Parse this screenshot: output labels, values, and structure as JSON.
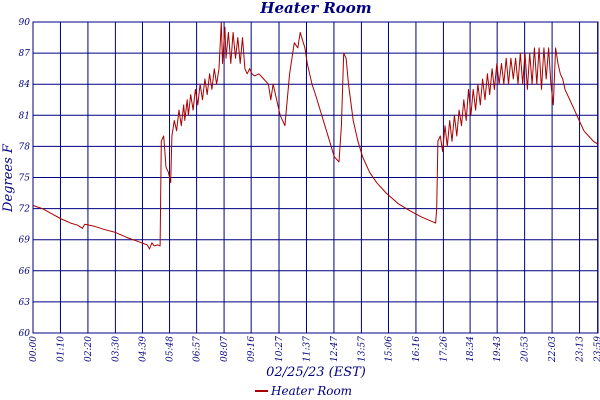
{
  "chart_data": {
    "type": "line",
    "title": "Heater Room",
    "xlabel": "02/25/23 (EST)",
    "ylabel": "Degrees F",
    "grid": true,
    "legend_position": "bottom-center",
    "xlim": [
      0,
      24
    ],
    "ylim": [
      60,
      90
    ],
    "y_ticks": [
      "60",
      "63",
      "66",
      "69",
      "72",
      "75",
      "78",
      "81",
      "84",
      "87",
      "90"
    ],
    "x_ticks": [
      {
        "label": "00:00",
        "hour": 0.0
      },
      {
        "label": "01:10",
        "hour": 1.1667
      },
      {
        "label": "02:20",
        "hour": 2.3333
      },
      {
        "label": "03:30",
        "hour": 3.5
      },
      {
        "label": "04:39",
        "hour": 4.65
      },
      {
        "label": "05:48",
        "hour": 5.8
      },
      {
        "label": "06:57",
        "hour": 6.95
      },
      {
        "label": "08:07",
        "hour": 8.1167
      },
      {
        "label": "09:16",
        "hour": 9.2667
      },
      {
        "label": "10:27",
        "hour": 10.45
      },
      {
        "label": "11:37",
        "hour": 11.6167
      },
      {
        "label": "12:47",
        "hour": 12.7833
      },
      {
        "label": "13:57",
        "hour": 13.95
      },
      {
        "label": "15:06",
        "hour": 15.1
      },
      {
        "label": "16:16",
        "hour": 16.2667
      },
      {
        "label": "17:26",
        "hour": 17.4333
      },
      {
        "label": "18:34",
        "hour": 18.5667
      },
      {
        "label": "19:43",
        "hour": 19.7167
      },
      {
        "label": "20:53",
        "hour": 20.8833
      },
      {
        "label": "22:03",
        "hour": 22.05
      },
      {
        "label": "23:13",
        "hour": 23.2167
      },
      {
        "label": "23:59",
        "hour": 23.9833
      }
    ],
    "series": [
      {
        "name": "Heater Room",
        "color": "#aa0000",
        "x": [
          0.0,
          0.4,
          0.8,
          1.2,
          1.6,
          1.9,
          2.1,
          2.2,
          2.6,
          3.0,
          3.5,
          4.0,
          4.5,
          4.85,
          4.95,
          5.05,
          5.15,
          5.3,
          5.4,
          5.45,
          5.55,
          5.65,
          5.75,
          5.85,
          5.9,
          6.0,
          6.1,
          6.2,
          6.3,
          6.4,
          6.45,
          6.55,
          6.6,
          6.7,
          6.8,
          6.9,
          7.0,
          7.1,
          7.2,
          7.3,
          7.4,
          7.5,
          7.6,
          7.7,
          7.8,
          7.9,
          8.0,
          8.05,
          8.15,
          8.2,
          8.3,
          8.4,
          8.5,
          8.6,
          8.7,
          8.8,
          8.9,
          9.0,
          9.1,
          9.2,
          9.3,
          9.4,
          9.6,
          9.8,
          10.0,
          10.1,
          10.2,
          10.3,
          10.4,
          10.5,
          10.7,
          10.9,
          11.1,
          11.25,
          11.35,
          11.55,
          11.65,
          11.75,
          11.85,
          12.0,
          12.2,
          12.4,
          12.6,
          12.8,
          13.0,
          13.1,
          13.2,
          13.3,
          13.4,
          13.6,
          13.8,
          14.0,
          14.3,
          14.6,
          15.0,
          15.5,
          16.0,
          16.5,
          17.1,
          17.15,
          17.2,
          17.3,
          17.4,
          17.5,
          17.6,
          17.7,
          17.8,
          17.9,
          18.0,
          18.1,
          18.2,
          18.3,
          18.4,
          18.5,
          18.6,
          18.7,
          18.8,
          18.9,
          19.0,
          19.1,
          19.2,
          19.3,
          19.4,
          19.5,
          19.6,
          19.7,
          19.8,
          19.9,
          20.0,
          20.1,
          20.2,
          20.3,
          20.4,
          20.5,
          20.6,
          20.7,
          20.8,
          20.9,
          21.0,
          21.1,
          21.2,
          21.3,
          21.4,
          21.5,
          21.6,
          21.7,
          21.8,
          21.9,
          22.0,
          22.1,
          22.2,
          22.3,
          22.4,
          22.5,
          22.6,
          22.8,
          23.0,
          23.2,
          23.4,
          23.6,
          23.8,
          24.0
        ],
        "y": [
          72.3,
          72.0,
          71.5,
          71.0,
          70.6,
          70.4,
          70.1,
          70.5,
          70.3,
          70.0,
          69.7,
          69.2,
          68.8,
          68.5,
          68.1,
          68.7,
          68.4,
          68.5,
          68.4,
          78.5,
          79.0,
          76.0,
          75.5,
          74.5,
          79.0,
          80.5,
          79.5,
          81.5,
          80.0,
          82.0,
          80.5,
          82.5,
          81.0,
          83.0,
          81.5,
          83.5,
          82.0,
          84.0,
          82.5,
          84.5,
          83.0,
          85.0,
          83.5,
          85.5,
          84.0,
          85.5,
          90.0,
          86.0,
          89.5,
          86.5,
          89.0,
          86.0,
          89.0,
          86.5,
          88.5,
          86.0,
          88.5,
          85.5,
          85.0,
          85.5,
          85.0,
          84.8,
          85.0,
          84.5,
          84.0,
          82.5,
          84.0,
          83.0,
          82.0,
          81.0,
          80.0,
          85.0,
          88.0,
          87.5,
          89.0,
          87.5,
          86.0,
          85.0,
          84.0,
          83.0,
          81.5,
          80.0,
          78.5,
          77.0,
          76.5,
          80.0,
          87.0,
          86.5,
          84.0,
          80.5,
          78.5,
          77.0,
          75.5,
          74.5,
          73.5,
          72.5,
          71.8,
          71.2,
          70.6,
          72.0,
          78.5,
          79.0,
          77.5,
          80.0,
          78.0,
          80.5,
          78.5,
          81.0,
          79.0,
          81.5,
          80.0,
          82.5,
          80.5,
          83.5,
          81.0,
          83.5,
          81.5,
          84.0,
          82.0,
          84.5,
          82.5,
          85.0,
          83.0,
          85.5,
          83.5,
          86.0,
          84.0,
          86.0,
          84.0,
          86.5,
          84.0,
          86.5,
          84.5,
          86.5,
          84.0,
          87.0,
          84.0,
          87.0,
          83.5,
          87.0,
          84.0,
          87.5,
          84.0,
          87.5,
          83.5,
          87.5,
          84.5,
          87.5,
          84.0,
          82.0,
          87.5,
          86.0,
          85.0,
          84.5,
          83.5,
          82.5,
          81.5,
          80.5,
          79.5,
          79.0,
          78.5,
          78.2
        ]
      }
    ]
  }
}
